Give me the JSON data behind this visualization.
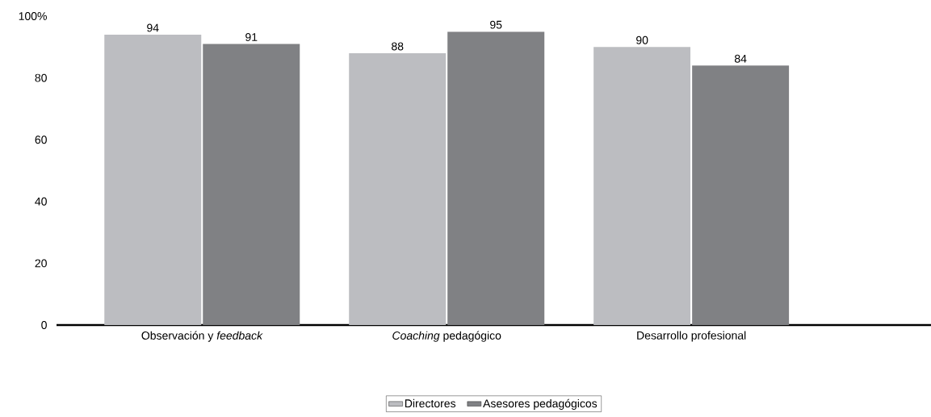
{
  "chart_data": {
    "type": "bar",
    "categories": [
      "Observación y *feedback*",
      "*Coaching* pedagógico",
      "Desarrollo profesional"
    ],
    "series": [
      {
        "name": "Directores",
        "color": "#bcbdc1",
        "values": [
          94,
          88,
          90
        ]
      },
      {
        "name": "Asesores pedagógicos",
        "color": "#808184",
        "values": [
          91,
          95,
          84
        ]
      }
    ],
    "ylim": [
      0,
      100
    ],
    "yticks": [
      0,
      20,
      40,
      60,
      80,
      {
        "value": 100,
        "label": "100%"
      }
    ],
    "data_labels": true,
    "grid": false,
    "legend": "bottom"
  }
}
